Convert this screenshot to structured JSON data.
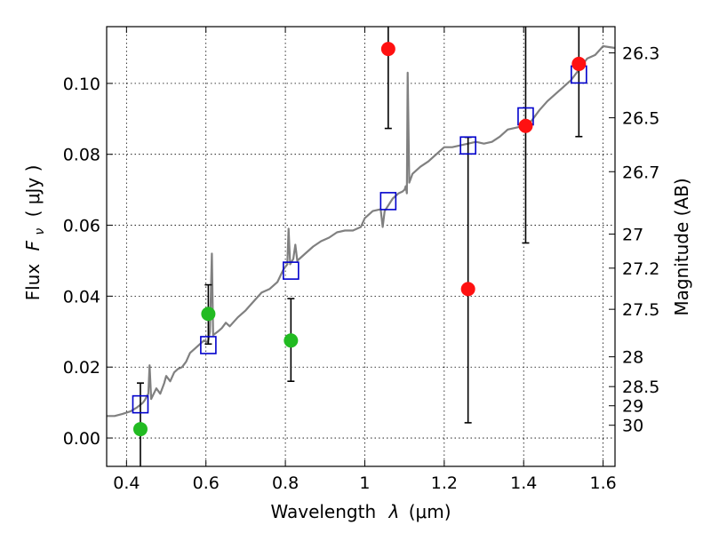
{
  "chart_data": {
    "type": "scatter",
    "xlabel_prefix": "Wavelength",
    "xlabel_math": "λ",
    "xlabel_unit": "(μm)",
    "ylabel_prefix": "Flux",
    "ylabel_math": "F",
    "ylabel_sub": "ν",
    "ylabel_unit": "( μJy )",
    "y2label": "Magnitude (AB)",
    "xlim": [
      0.35,
      1.63
    ],
    "ylim": [
      -0.008,
      0.116
    ],
    "x_ticks": [
      0.4,
      0.6,
      0.8,
      1.0,
      1.2,
      1.4,
      1.6
    ],
    "x_tick_labels": [
      "0.4",
      "0.6",
      "0.8",
      "1",
      "1.2",
      "1.4",
      "1.6"
    ],
    "y_ticks": [
      0.0,
      0.02,
      0.04,
      0.06,
      0.08,
      0.1
    ],
    "y_tick_labels": [
      "0.00",
      "0.02",
      "0.04",
      "0.06",
      "0.08",
      "0.10"
    ],
    "mag_ticks": [
      {
        "label": "26.3",
        "flux": 0.1086
      },
      {
        "label": "26.5",
        "flux": 0.0903
      },
      {
        "label": "26.7",
        "flux": 0.0751
      },
      {
        "label": "27",
        "flux": 0.0575
      },
      {
        "label": "27.2",
        "flux": 0.0479
      },
      {
        "label": "27.5",
        "flux": 0.0363
      },
      {
        "label": "28",
        "flux": 0.0229
      },
      {
        "label": "28.5",
        "flux": 0.0145
      },
      {
        "label": "29",
        "flux": 0.0091
      },
      {
        "label": "30",
        "flux": 0.0036
      }
    ],
    "grid": true,
    "series": [
      {
        "kind": "model_spectrum",
        "color": "#808080",
        "points": [
          [
            0.35,
            0.0062
          ],
          [
            0.37,
            0.0062
          ],
          [
            0.39,
            0.0068
          ],
          [
            0.41,
            0.0075
          ],
          [
            0.425,
            0.0085
          ],
          [
            0.44,
            0.0098
          ],
          [
            0.445,
            0.0105
          ],
          [
            0.455,
            0.0125
          ],
          [
            0.458,
            0.0205
          ],
          [
            0.462,
            0.011
          ],
          [
            0.475,
            0.014
          ],
          [
            0.485,
            0.0125
          ],
          [
            0.495,
            0.0155
          ],
          [
            0.5,
            0.0175
          ],
          [
            0.51,
            0.016
          ],
          [
            0.52,
            0.0185
          ],
          [
            0.53,
            0.0195
          ],
          [
            0.54,
            0.02
          ],
          [
            0.55,
            0.0215
          ],
          [
            0.56,
            0.024
          ],
          [
            0.57,
            0.025
          ],
          [
            0.585,
            0.0265
          ],
          [
            0.595,
            0.0275
          ],
          [
            0.605,
            0.027
          ],
          [
            0.61,
            0.03
          ],
          [
            0.615,
            0.052
          ],
          [
            0.618,
            0.029
          ],
          [
            0.63,
            0.03
          ],
          [
            0.64,
            0.031
          ],
          [
            0.65,
            0.0325
          ],
          [
            0.66,
            0.0315
          ],
          [
            0.68,
            0.034
          ],
          [
            0.7,
            0.036
          ],
          [
            0.72,
            0.0385
          ],
          [
            0.74,
            0.041
          ],
          [
            0.76,
            0.042
          ],
          [
            0.78,
            0.044
          ],
          [
            0.795,
            0.0475
          ],
          [
            0.805,
            0.049
          ],
          [
            0.808,
            0.059
          ],
          [
            0.812,
            0.049
          ],
          [
            0.82,
            0.0505
          ],
          [
            0.825,
            0.0545
          ],
          [
            0.83,
            0.05
          ],
          [
            0.85,
            0.052
          ],
          [
            0.87,
            0.054
          ],
          [
            0.89,
            0.0555
          ],
          [
            0.91,
            0.0565
          ],
          [
            0.93,
            0.058
          ],
          [
            0.95,
            0.0585
          ],
          [
            0.97,
            0.0585
          ],
          [
            0.99,
            0.0595
          ],
          [
            1.0,
            0.062
          ],
          [
            1.02,
            0.064
          ],
          [
            1.04,
            0.0645
          ],
          [
            1.045,
            0.0595
          ],
          [
            1.05,
            0.064
          ],
          [
            1.07,
            0.0675
          ],
          [
            1.085,
            0.069
          ],
          [
            1.095,
            0.0695
          ],
          [
            1.1,
            0.07
          ],
          [
            1.103,
            0.071
          ],
          [
            1.106,
            0.069
          ],
          [
            1.108,
            0.103
          ],
          [
            1.112,
            0.072
          ],
          [
            1.12,
            0.0745
          ],
          [
            1.14,
            0.0765
          ],
          [
            1.16,
            0.078
          ],
          [
            1.18,
            0.08
          ],
          [
            1.2,
            0.082
          ],
          [
            1.22,
            0.082
          ],
          [
            1.24,
            0.0825
          ],
          [
            1.26,
            0.083
          ],
          [
            1.28,
            0.0835
          ],
          [
            1.3,
            0.083
          ],
          [
            1.32,
            0.0835
          ],
          [
            1.34,
            0.085
          ],
          [
            1.36,
            0.087
          ],
          [
            1.38,
            0.0875
          ],
          [
            1.4,
            0.088
          ],
          [
            1.42,
            0.0895
          ],
          [
            1.44,
            0.0925
          ],
          [
            1.46,
            0.095
          ],
          [
            1.48,
            0.097
          ],
          [
            1.5,
            0.099
          ],
          [
            1.52,
            0.101
          ],
          [
            1.54,
            0.104
          ],
          [
            1.56,
            0.107
          ],
          [
            1.58,
            0.108
          ],
          [
            1.6,
            0.1105
          ],
          [
            1.63,
            0.11
          ]
        ]
      },
      {
        "kind": "model_photometry",
        "marker": "open-square",
        "color": "#0000cc",
        "points": [
          {
            "x": 0.435,
            "y": 0.0095
          },
          {
            "x": 0.606,
            "y": 0.0262
          },
          {
            "x": 0.814,
            "y": 0.0472
          },
          {
            "x": 1.059,
            "y": 0.0668
          },
          {
            "x": 1.26,
            "y": 0.0825
          },
          {
            "x": 1.405,
            "y": 0.0907
          },
          {
            "x": 1.539,
            "y": 0.1025
          }
        ]
      },
      {
        "kind": "observed_optical",
        "marker": "filled-circle",
        "color": "#22bb22",
        "points": [
          {
            "x": 0.435,
            "y": 0.0025,
            "err_lo": -0.008,
            "err_hi": 0.0155
          },
          {
            "x": 0.606,
            "y": 0.035,
            "err_lo": 0.0265,
            "err_hi": 0.0432
          },
          {
            "x": 0.814,
            "y": 0.0275,
            "err_lo": 0.016,
            "err_hi": 0.0393
          }
        ]
      },
      {
        "kind": "observed_nir",
        "marker": "filled-circle",
        "color": "#ff1111",
        "points": [
          {
            "x": 1.059,
            "y": 0.1097,
            "err_lo": 0.0873,
            "err_hi": 0.116
          },
          {
            "x": 1.26,
            "y": 0.042,
            "err_lo": 0.0043,
            "err_hi": 0.0848
          },
          {
            "x": 1.405,
            "y": 0.088,
            "err_lo": 0.055,
            "err_hi": 0.116
          },
          {
            "x": 1.539,
            "y": 0.1055,
            "err_lo": 0.085,
            "err_hi": 0.116
          }
        ]
      }
    ]
  }
}
